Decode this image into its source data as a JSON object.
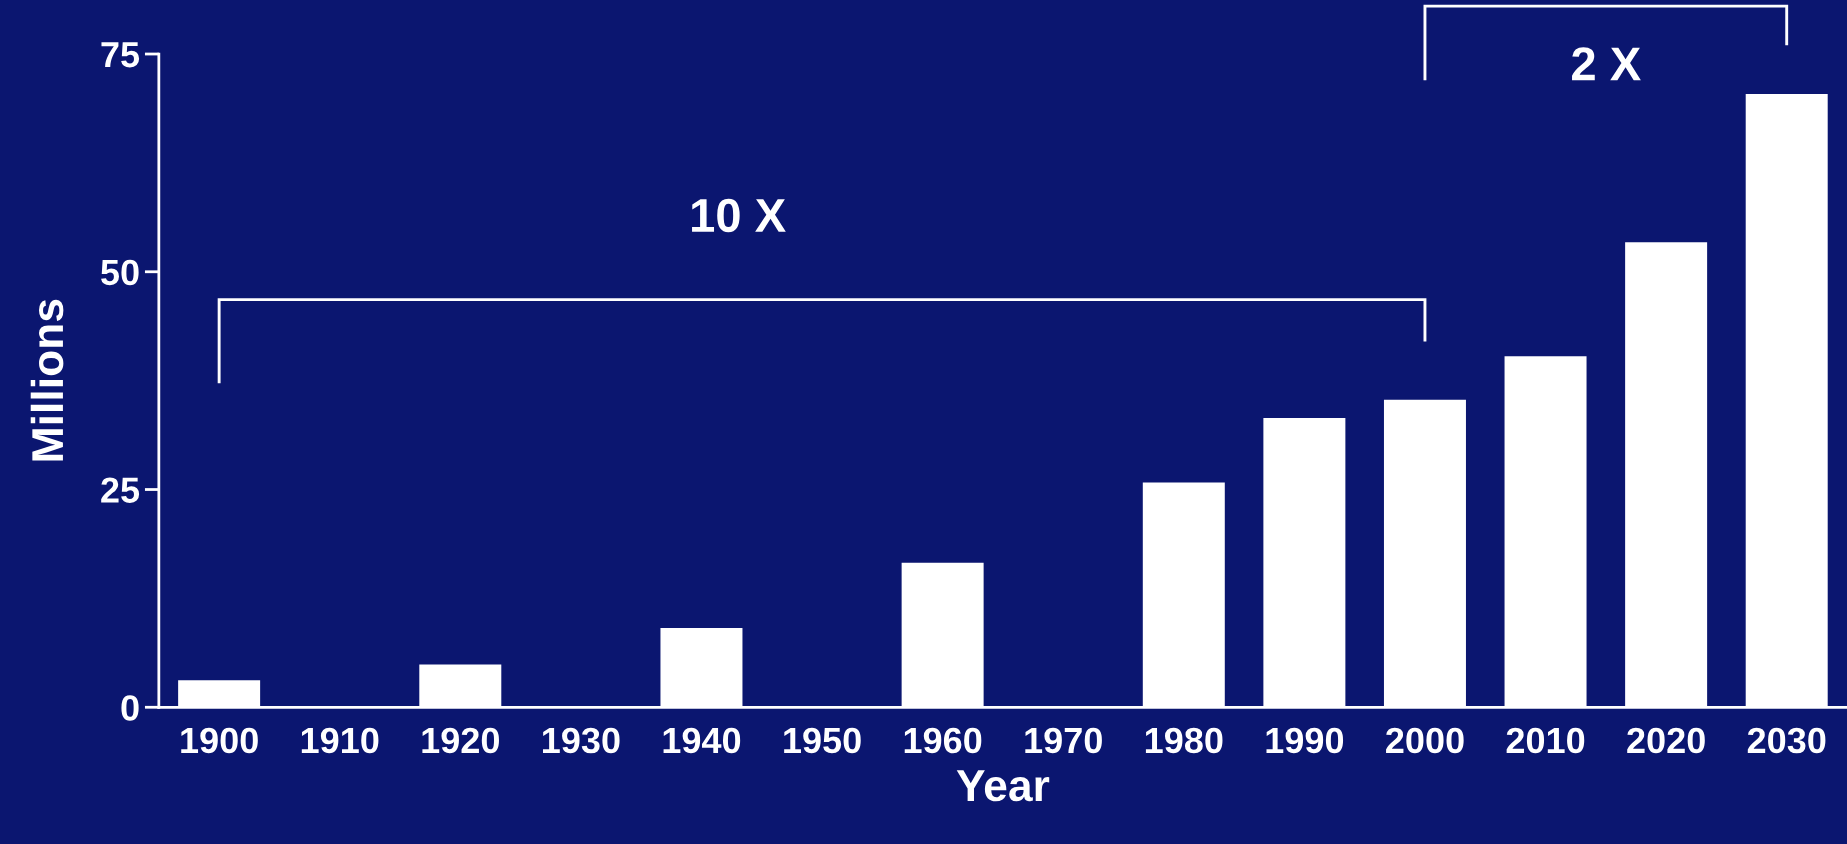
{
  "chart_data": {
    "type": "bar",
    "xlabel": "Year",
    "ylabel": "Millions",
    "categories": [
      "1900",
      "1910",
      "1920",
      "1930",
      "1940",
      "1950",
      "1960",
      "1970",
      "1980",
      "1990",
      "2000",
      "2010",
      "2020",
      "2030"
    ],
    "values": [
      3.1,
      null,
      4.9,
      null,
      9.1,
      null,
      16.6,
      null,
      25.8,
      33.2,
      35.3,
      40.3,
      53.4,
      70.4
    ],
    "color": "#ffffff",
    "ylim": [
      0,
      75
    ],
    "yticks": [
      0,
      25,
      50,
      75
    ],
    "annotations": [
      "10 X",
      "2 X"
    ],
    "grid": false
  }
}
